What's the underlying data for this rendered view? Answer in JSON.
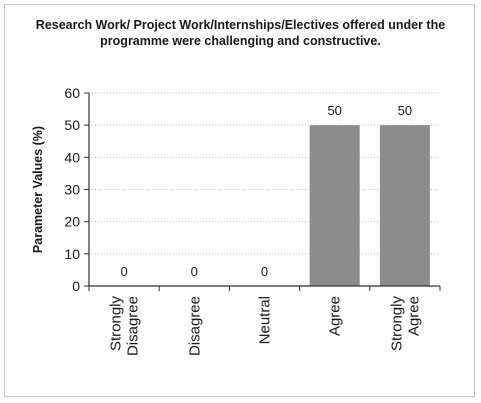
{
  "chart_data": {
    "type": "bar",
    "title": "Research Work/ Project Work/Internships/Electives offered under the programme were challenging and constructive.",
    "ylabel": "Parameter Values (%)",
    "xlabel": "",
    "categories": [
      "Strongly Disagree",
      "Disagree",
      "Neutral",
      "Agree",
      "Strongly Agree"
    ],
    "category_lines": [
      [
        "Strongly",
        "Disagree"
      ],
      [
        "Disagree"
      ],
      [
        "Neutral"
      ],
      [
        "Agree"
      ],
      [
        "Strongly",
        "Agree"
      ]
    ],
    "values": [
      0,
      0,
      0,
      50,
      50
    ],
    "ylim": [
      0,
      60
    ],
    "yticks": [
      0,
      10,
      20,
      30,
      40,
      50,
      60
    ],
    "grid": true,
    "legend": "none",
    "bar_color": "#8c8c8c"
  }
}
